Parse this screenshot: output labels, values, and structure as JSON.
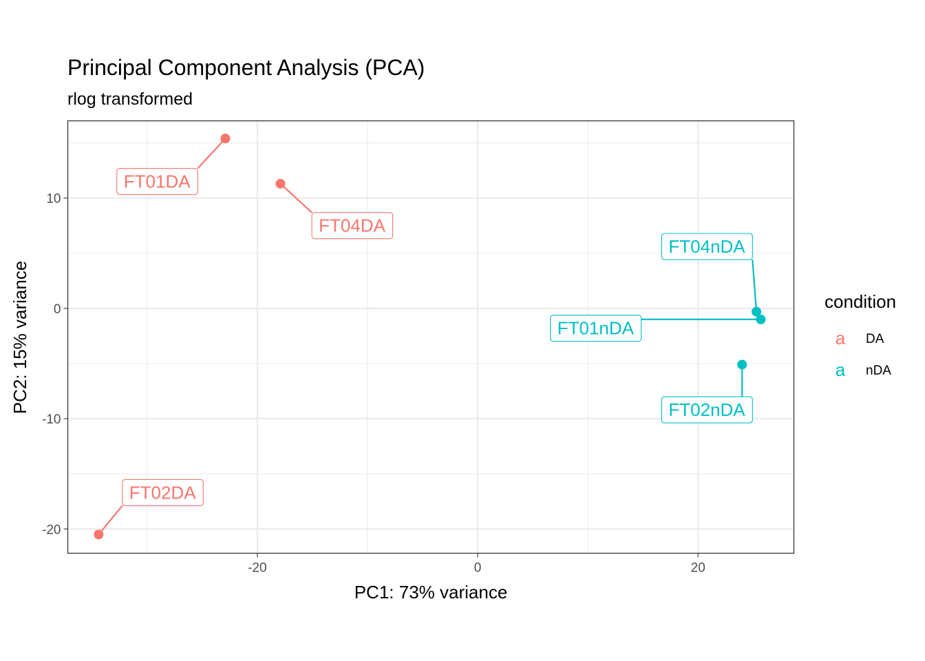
{
  "chart_data": {
    "type": "scatter",
    "title": "Principal Component Analysis (PCA)",
    "subtitle": "rlog transformed",
    "xlabel": "PC1: 73% variance",
    "ylabel": "PC2: 15% variance",
    "xlim": [
      -37.2,
      28.7
    ],
    "ylim": [
      -22.2,
      17.0
    ],
    "x_ticks": [
      -20,
      0,
      20
    ],
    "x_tick_labels": [
      "-20",
      "0",
      "20"
    ],
    "y_ticks": [
      -20,
      -10,
      0,
      10
    ],
    "y_tick_labels": [
      "-20",
      "-10",
      "0",
      "10"
    ],
    "grid": true,
    "legend": {
      "title": "condition",
      "position": "right",
      "key_glyph": "a",
      "entries": [
        {
          "label": "DA",
          "color": "#F8766D"
        },
        {
          "label": "nDA",
          "color": "#00BFC4"
        }
      ]
    },
    "series": [
      {
        "name": "DA",
        "color": "#F8766D",
        "points": [
          {
            "label": "FT01DA",
            "x": -22.9,
            "y": 15.4,
            "label_x": -29.1,
            "label_y": 11.5
          },
          {
            "label": "FT04DA",
            "x": -17.9,
            "y": 11.3,
            "label_x": -11.4,
            "label_y": 7.5
          },
          {
            "label": "FT02DA",
            "x": -34.4,
            "y": -20.5,
            "label_x": -28.6,
            "label_y": -16.7
          }
        ]
      },
      {
        "name": "nDA",
        "color": "#00BFC4",
        "points": [
          {
            "label": "FT04nDA",
            "x": 25.3,
            "y": -0.3,
            "label_x": 20.8,
            "label_y": 5.6
          },
          {
            "label": "FT01nDA",
            "x": 25.7,
            "y": -1.0,
            "label_x": 10.7,
            "label_y": -1.8
          },
          {
            "label": "FT02nDA",
            "x": 24.0,
            "y": -5.1,
            "label_x": 20.8,
            "label_y": -9.2
          }
        ]
      }
    ]
  }
}
